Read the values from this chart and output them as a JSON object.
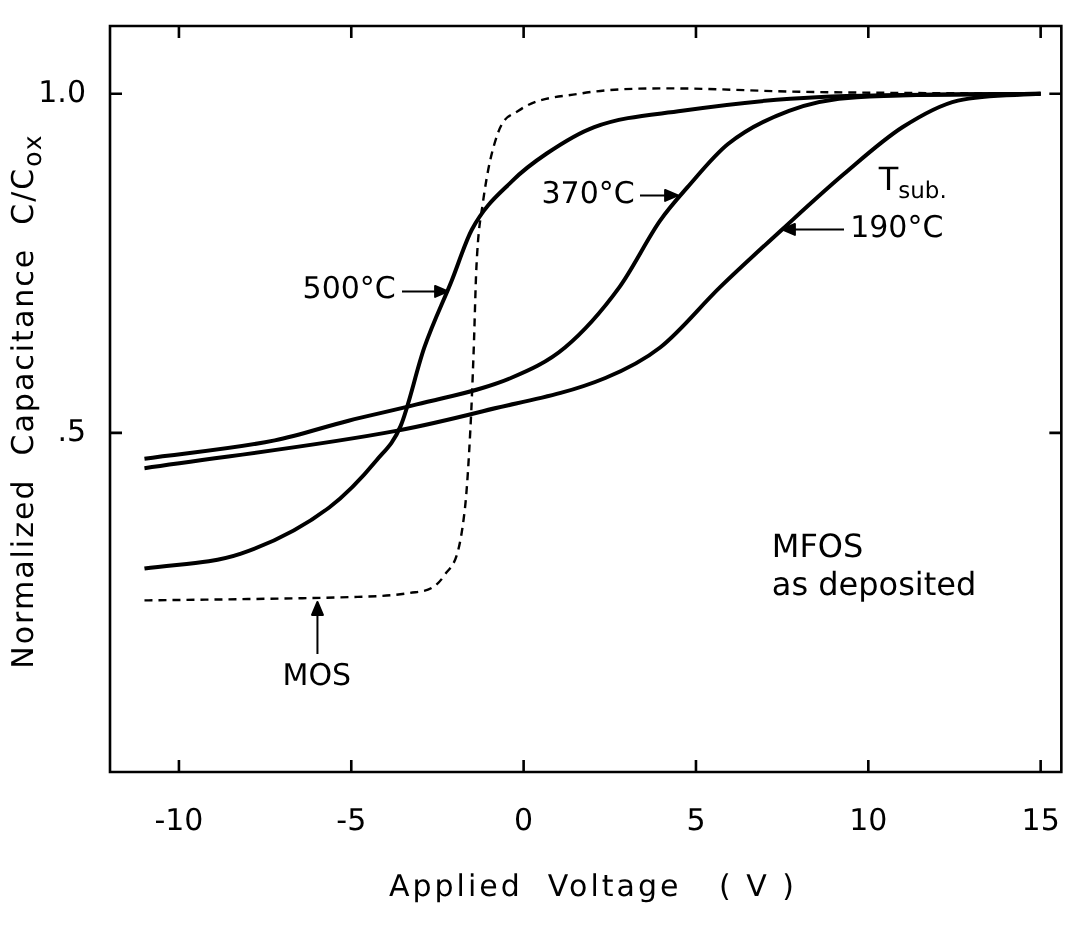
{
  "chart_data": {
    "type": "line",
    "xlabel": "Applied  Voltage   ( V )",
    "ylabel": "Normalized  Capacitance  C/C$_{ox}$",
    "xlim": [
      -12,
      15.6
    ],
    "ylim": [
      0,
      1.1
    ],
    "xticks": [
      -10,
      -5,
      0,
      5,
      10,
      15
    ],
    "yticks": [
      {
        "value": 0.5,
        "label": ".5"
      },
      {
        "value": 1.0,
        "label": "1.0"
      }
    ],
    "grid": false,
    "legend": false,
    "marker": "none",
    "series": [
      {
        "color": "#000000",
        "line_style": "dashed",
        "x": [
          -11,
          -8,
          -5,
          -3.3,
          -2.3,
          -1.7,
          -1.54,
          -1.45,
          -1.37,
          -1.18,
          -0.76,
          -0.15,
          1.6,
          4.2,
          8,
          15
        ],
        "values": [
          0.253,
          0.255,
          0.258,
          0.264,
          0.29,
          0.39,
          0.51,
          0.62,
          0.744,
          0.84,
          0.94,
          0.975,
          1.0,
          1.008,
          1.003,
          1.0
        ]
      },
      {
        "color": "#000000",
        "line_style": "solid",
        "x": [
          -11,
          -8.2,
          -5.64,
          -4.26,
          -3.57,
          -2.88,
          -2.09,
          -1.5,
          -0.32,
          0.67,
          2.05,
          4.6,
          8.5,
          15
        ],
        "values": [
          0.3,
          0.322,
          0.39,
          0.46,
          0.51,
          0.626,
          0.724,
          0.8,
          0.872,
          0.912,
          0.951,
          0.975,
          0.995,
          1.0
        ]
      },
      {
        "color": "#000000",
        "line_style": "solid",
        "x": [
          -11,
          -7.22,
          -5.08,
          -3.1,
          -0.37,
          1.2,
          2.78,
          3.96,
          4.75,
          5.93,
          7.7,
          9.67,
          15
        ],
        "values": [
          0.462,
          0.489,
          0.518,
          0.542,
          0.581,
          0.626,
          0.715,
          0.813,
          0.862,
          0.926,
          0.975,
          0.995,
          1.0
        ]
      },
      {
        "color": "#000000",
        "line_style": "solid",
        "x": [
          -11,
          -3.7,
          -1.18,
          2.37,
          3.96,
          5.7,
          7.5,
          9.3,
          11,
          12.6,
          15
        ],
        "values": [
          0.448,
          0.503,
          0.532,
          0.581,
          0.626,
          0.715,
          0.8,
          0.882,
          0.951,
          0.99,
          1.0
        ]
      }
    ],
    "annotations": [
      {
        "text": "MOS",
        "x": -6,
        "y": 0.257
      },
      {
        "text": "500°C",
        "x": -2.2,
        "y": 0.71
      },
      {
        "text": "370°C",
        "x": 4.5,
        "y": 0.85
      },
      {
        "text": "190°C",
        "x": 7.5,
        "y": 0.8
      },
      "T$_{sub.}$",
      "MFOS\nas deposited"
    ]
  }
}
